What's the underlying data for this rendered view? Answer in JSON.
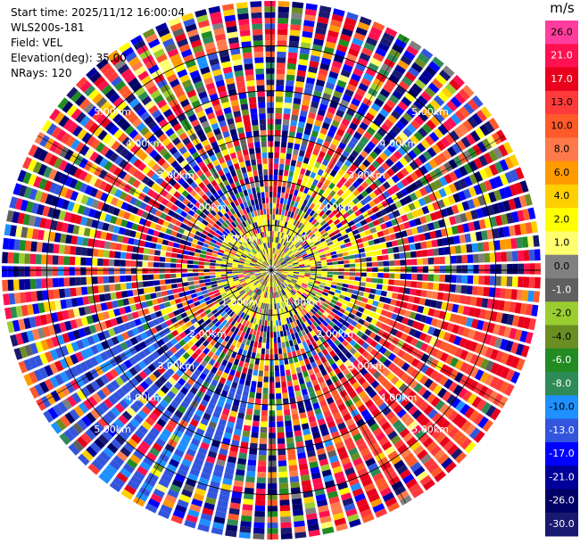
{
  "info": {
    "start_time": "Start time: 2025/11/12 16:00:04",
    "station": "WLS200s-181",
    "field": "Field: VEL",
    "elevation": "Elevation(deg): 35.00",
    "nrays": "NRays: 120"
  },
  "colorbar": {
    "unit": "m/s",
    "ticks": [
      "26.0",
      "21.0",
      "17.0",
      "13.0",
      "10.0",
      "8.0",
      "6.0",
      "4.0",
      "2.0",
      "1.0",
      "0.0",
      "-1.0",
      "-2.0",
      "-4.0",
      "-6.0",
      "-8.0",
      "-10.0",
      "-13.0",
      "-17.0",
      "-21.0",
      "-26.0",
      "-30.0"
    ],
    "colors": [
      "#ff3d9e",
      "#ff1050",
      "#e8001c",
      "#ff3a3a",
      "#ff5a2a",
      "#ff7a4a",
      "#ff9a00",
      "#ffd000",
      "#ffff00",
      "#ffff70",
      "#808080",
      "#606060",
      "#9ace30",
      "#6b8e23",
      "#228b22",
      "#2e8b57",
      "#1e90ff",
      "#3355dd",
      "#0000ff",
      "#000099",
      "#000066",
      "#191970"
    ]
  },
  "chart_data": {
    "type": "heatmap",
    "subtype": "PPI polar scan",
    "field": "VEL",
    "unit": "m/s",
    "n_rays": 120,
    "elevation_deg": 35.0,
    "range_rings_km": [
      1.0,
      2.0,
      3.0,
      4.0,
      5.0
    ],
    "range_labels": [
      "1.00km",
      "2.00km",
      "3.00km",
      "4.00km",
      "5.00km"
    ],
    "max_range_km": 6.0,
    "value_range": [
      -30.0,
      26.0
    ],
    "pattern": {
      "near_field": "mostly 0 to 4 m/s (grey/yellow), green -2 to -1 m/s near center",
      "southwest_arc": "-13 to -10 m/s (blue) at 3–6 km",
      "east_southeast_arc": "8 to 21 m/s (orange/red) at 3–6 km",
      "outer_ring": "noise, all values"
    }
  }
}
